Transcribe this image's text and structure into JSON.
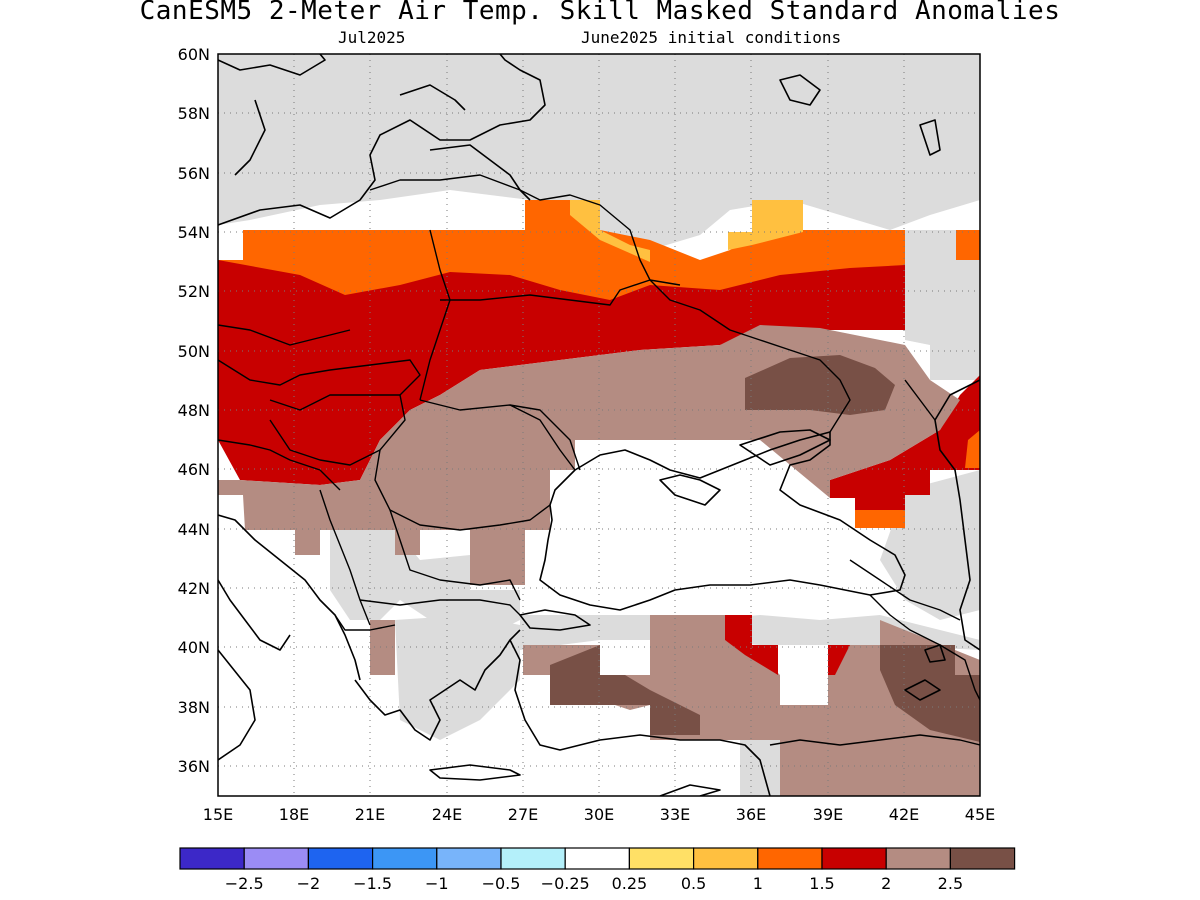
{
  "title": "CanESM5 2-Meter Air Temp. Skill Masked Standard Anomalies",
  "subtitle_left": "Jul2025",
  "subtitle_right": "June2025 initial conditions",
  "map": {
    "lon_range": [
      15,
      45
    ],
    "lat_range": [
      35,
      60
    ],
    "grid": true,
    "lon_ticks": [
      "15E",
      "18E",
      "21E",
      "24E",
      "27E",
      "30E",
      "33E",
      "36E",
      "39E",
      "42E",
      "45E"
    ],
    "lat_ticks": [
      "60N",
      "58N",
      "56N",
      "54N",
      "52N",
      "50N",
      "48N",
      "46N",
      "44N",
      "42N",
      "40N",
      "38N",
      "36N"
    ],
    "colors": {
      "masked_gray": "#dcdcdc",
      "c_0_25_0_5": "#ffe066",
      "c_0_5_1": "#ffc040",
      "c_1_1_5": "#ff6600",
      "c_1_5_2": "#c80000",
      "c_2_2_5": "#b48c82",
      "c_2_5_plus": "#785046"
    }
  },
  "colorbar": {
    "colors": [
      "#3c28c8",
      "#9b8cf5",
      "#1e64f0",
      "#3c96f5",
      "#78b4fa",
      "#b4f0fa",
      "#ffffff",
      "#ffe066",
      "#ffc040",
      "#ff6600",
      "#c80000",
      "#b48c82",
      "#785046"
    ],
    "labels": [
      "-2.5",
      "-2",
      "-1.5",
      "-1",
      "-0.5",
      "-0.25",
      "0.25",
      "0.5",
      "1",
      "1.5",
      "2",
      "2.5"
    ]
  }
}
